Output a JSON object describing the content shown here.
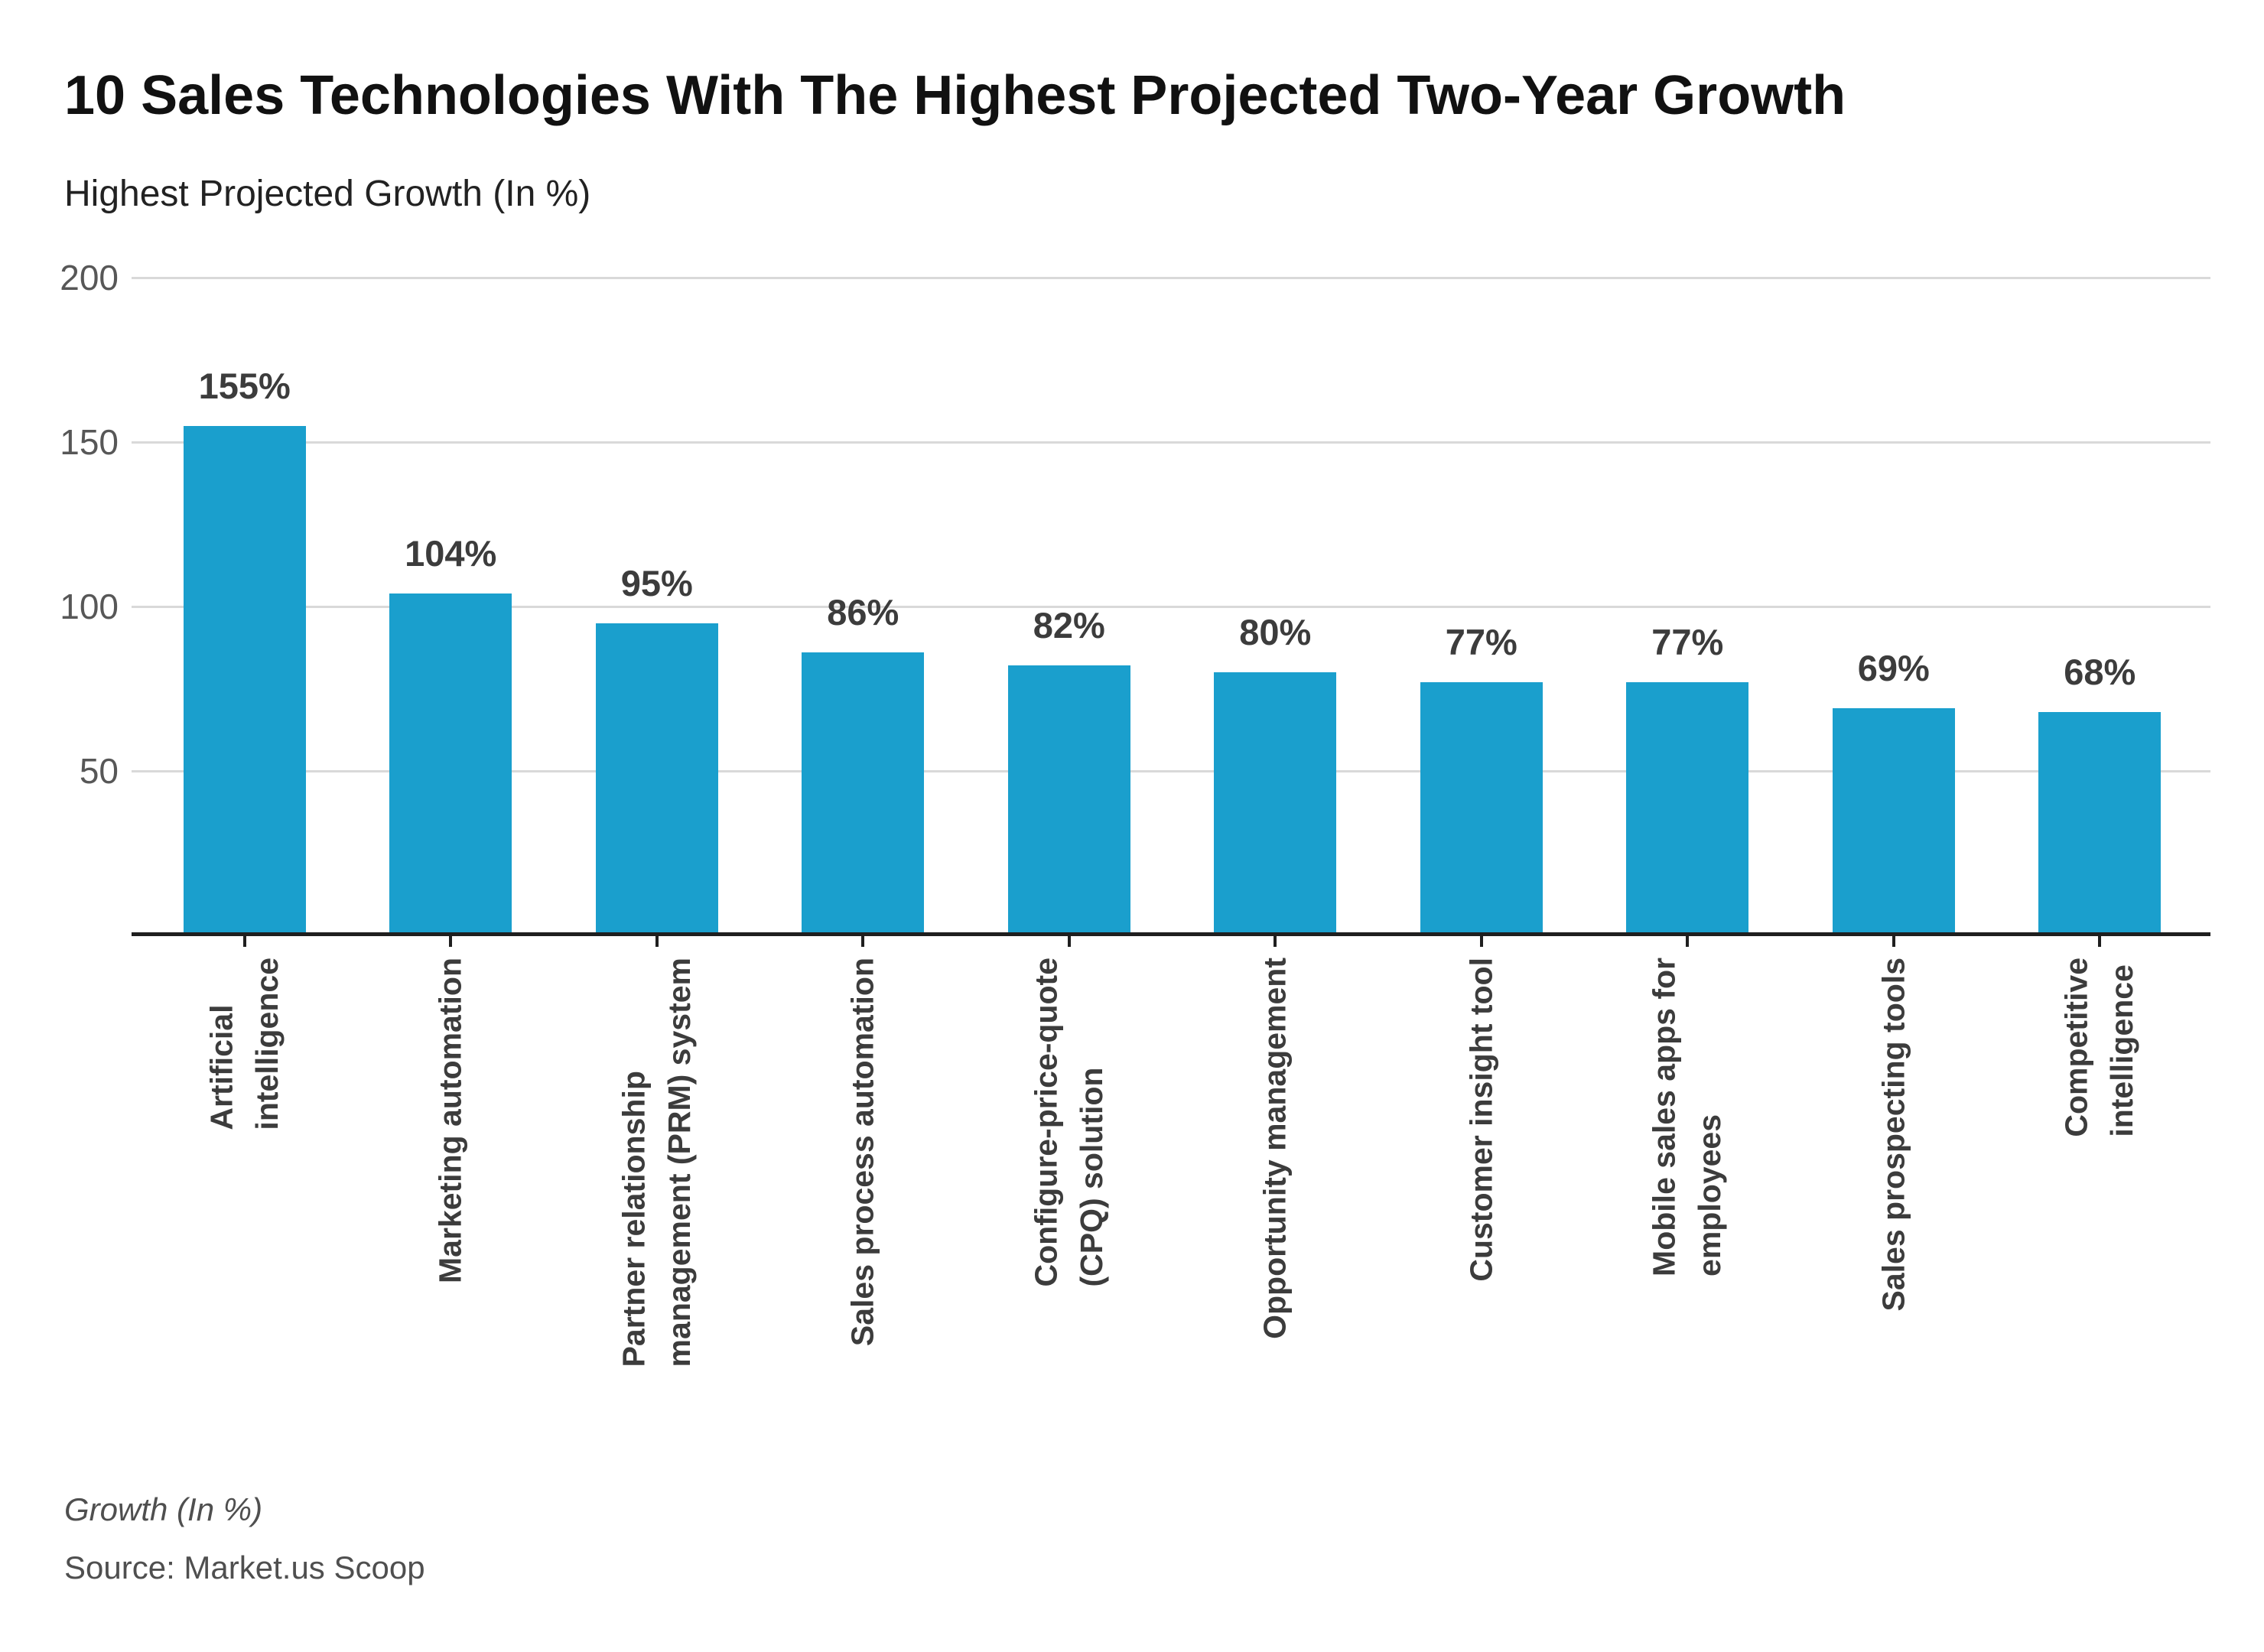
{
  "title": "10 Sales Technologies With The Highest Projected Two-Year Growth",
  "subtitle": "Highest Projected Growth (In %)",
  "footer": {
    "note": "Growth (In %)",
    "source": "Source: Market.us Scoop"
  },
  "colors": {
    "bar": "#1A9FCD",
    "grid": "#D9D9D9",
    "axis": "#1F1F1F",
    "tick_label": "#575757",
    "value_label": "#3C3C3C",
    "category_label": "#3C3C3C",
    "title_text": "#111111",
    "footer_text": "#4F4F4F"
  },
  "chart_data": {
    "type": "bar",
    "title": "10 Sales Technologies With The Highest Projected Two-Year Growth",
    "subtitle": "Highest Projected Growth (In %)",
    "categories": [
      "Artificial\nintelligence",
      "Marketing automation",
      "Partner relationship\nmanagement (PRM) system",
      "Sales process automation",
      "Configure-price-quote\n(CPQ) solution",
      "Opportunity management",
      "Customer insight tool",
      "Mobile sales apps for\nemployees",
      "Sales prospecting tools",
      "Competitive\nintelligence"
    ],
    "values": [
      155,
      104,
      95,
      86,
      82,
      80,
      77,
      77,
      69,
      68
    ],
    "value_labels": [
      "155%",
      "104%",
      "95%",
      "86%",
      "82%",
      "80%",
      "77%",
      "77%",
      "69%",
      "68%"
    ],
    "xlabel": "",
    "ylabel": "Growth (In %)",
    "ylim": [
      0,
      200
    ],
    "yticks": [
      200,
      150,
      100,
      50
    ],
    "grid": true,
    "legend": false
  }
}
